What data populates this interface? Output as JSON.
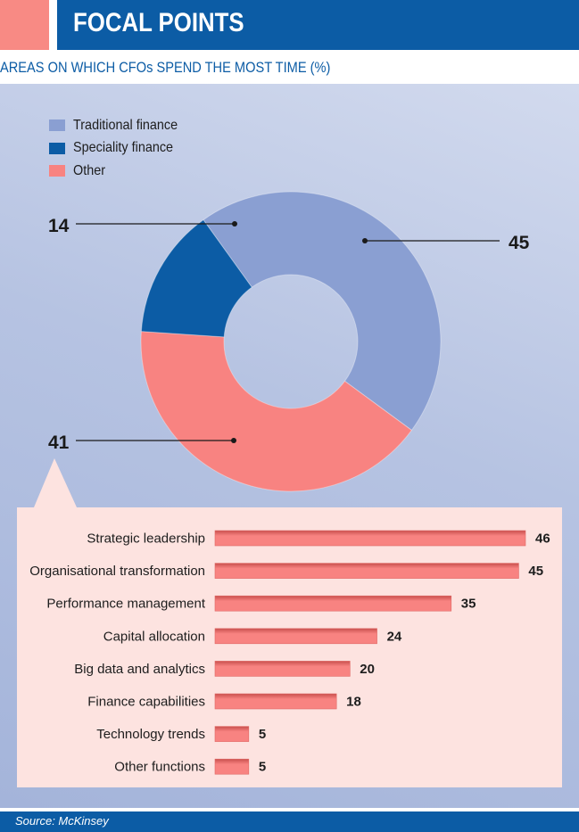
{
  "header": {
    "title": "FOCAL POINTS"
  },
  "subtitle": "AREAS ON WHICH CFOs SPEND THE MOST TIME (%)",
  "source": "Source: McKinsey",
  "colors": {
    "traditional": "#8a9fd2",
    "speciality": "#0c5ca5",
    "other": "#f88381",
    "bar": "#f88381",
    "header_blue": "#0c5ca5",
    "accent": "#f88a84"
  },
  "chart_data": [
    {
      "type": "pie",
      "title": "",
      "donut": true,
      "legend_placement": "top-left",
      "labels": [
        "Traditional finance",
        "Speciality finance",
        "Other"
      ],
      "values": [
        45,
        14,
        41
      ]
    },
    {
      "type": "bar",
      "orientation": "horizontal",
      "title": "",
      "categories": [
        "Strategic leadership",
        "Organisational transformation",
        "Performance management",
        "Capital allocation",
        "Big data and analytics",
        "Finance capabilities",
        "Technology trends",
        "Other functions"
      ],
      "values": [
        46,
        45,
        35,
        24,
        20,
        18,
        5,
        5
      ],
      "xlim": [
        0,
        46
      ]
    }
  ]
}
